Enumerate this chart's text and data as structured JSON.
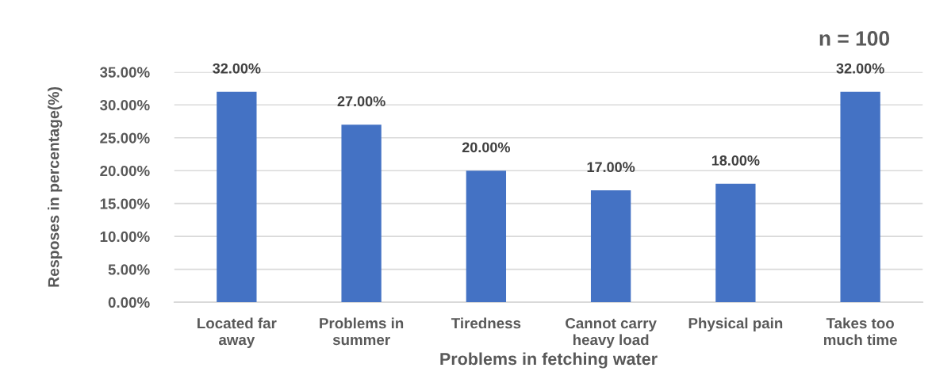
{
  "chart_data": {
    "type": "bar",
    "xlabel": "Problems in fetching water",
    "ylabel": "Resposes in percentage(%)",
    "annotations": [
      "n = 100"
    ],
    "categories": [
      "Located far away",
      "Problems in summer",
      "Tiredness",
      "Cannot carry heavy load",
      "Physical pain",
      "Takes too much time"
    ],
    "values": [
      32,
      27,
      20,
      17,
      18,
      32
    ],
    "value_labels": [
      "32.00%",
      "27.00%",
      "20.00%",
      "17.00%",
      "18.00%",
      "32.00%"
    ],
    "color": "#4472c4",
    "ylim": [
      0,
      35
    ],
    "yticks": [
      {
        "value": 0,
        "label": "0.00%"
      },
      {
        "value": 5,
        "label": "5.00%"
      },
      {
        "value": 10,
        "label": "10.00%"
      },
      {
        "value": 15,
        "label": "15.00%"
      },
      {
        "value": 20,
        "label": "20.00%"
      },
      {
        "value": 25,
        "label": "25.00%"
      },
      {
        "value": 30,
        "label": "30.00%"
      },
      {
        "value": 35,
        "label": "35.00%"
      }
    ],
    "grid": "y",
    "legend": false
  }
}
